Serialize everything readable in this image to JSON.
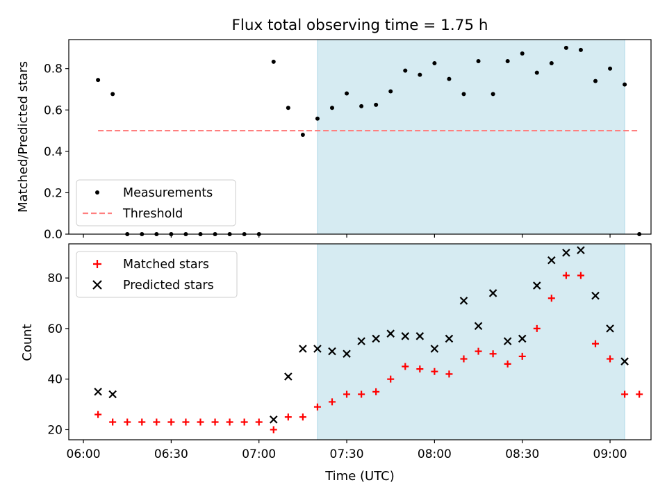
{
  "figure": {
    "title": "Flux total observing time = 1.75 h",
    "xlabel": "Time (UTC)",
    "x_ticks": [
      "06:00",
      "06:30",
      "07:00",
      "07:30",
      "08:00",
      "08:30",
      "09:00"
    ]
  },
  "chart_data": [
    {
      "type": "scatter",
      "panel": "top",
      "ylabel": "Matched/Predicted stars",
      "ylim": [
        0,
        0.94
      ],
      "y_ticks": [
        "0.0",
        "0.2",
        "0.4",
        "0.6",
        "0.8"
      ],
      "x_unit": "minutes after 06:00 UTC",
      "xlim": [
        -5,
        194
      ],
      "shaded_span": [
        80,
        185
      ],
      "series": [
        {
          "name": "Measurements",
          "marker": "dot",
          "color": "#000000",
          "x": [
            5,
            10,
            15,
            20,
            25,
            30,
            35,
            40,
            45,
            50,
            55,
            60,
            65,
            70,
            75,
            80,
            85,
            90,
            95,
            100,
            105,
            110,
            115,
            120,
            125,
            130,
            135,
            140,
            145,
            150,
            155,
            160,
            165,
            170,
            175,
            180,
            185,
            190
          ],
          "y": [
            0.745,
            0.677,
            0.0,
            0.0,
            0.0,
            0.0,
            0.0,
            0.0,
            0.0,
            0.0,
            0.0,
            0.0,
            0.833,
            0.61,
            0.48,
            0.558,
            0.61,
            0.68,
            0.618,
            0.625,
            0.69,
            0.79,
            0.77,
            0.826,
            0.75,
            0.677,
            0.836,
            0.677,
            0.836,
            0.873,
            0.78,
            0.826,
            0.9,
            0.89,
            0.74,
            0.8,
            0.723,
            0.0
          ]
        },
        {
          "name": "Threshold",
          "style": "dashed",
          "color": "#ff7f7f",
          "x": [
            5,
            190
          ],
          "y": [
            0.5,
            0.5
          ]
        }
      ],
      "legend": "lower-left"
    },
    {
      "type": "scatter",
      "panel": "bottom",
      "ylabel": "Count",
      "ylim": [
        16,
        93.5
      ],
      "y_ticks": [
        "20",
        "40",
        "60",
        "80"
      ],
      "x_unit": "minutes after 06:00 UTC",
      "xlim": [
        -5,
        194
      ],
      "shaded_span": [
        80,
        185
      ],
      "series": [
        {
          "name": "Matched stars",
          "marker": "plus",
          "color": "#ff0000",
          "x": [
            5,
            10,
            15,
            20,
            25,
            30,
            35,
            40,
            45,
            50,
            55,
            60,
            65,
            70,
            75,
            80,
            85,
            90,
            95,
            100,
            105,
            110,
            115,
            120,
            125,
            130,
            135,
            140,
            145,
            150,
            155,
            160,
            165,
            170,
            175,
            180,
            185,
            190
          ],
          "y": [
            26,
            23,
            23,
            23,
            23,
            23,
            23,
            23,
            23,
            23,
            23,
            23,
            20,
            25,
            25,
            29,
            31,
            34,
            34,
            35,
            40,
            45,
            44,
            43,
            42,
            48,
            51,
            50,
            46,
            49,
            60,
            72,
            81,
            81,
            54,
            48,
            34,
            34
          ]
        },
        {
          "name": "Predicted stars",
          "marker": "x",
          "color": "#000000",
          "x": [
            5,
            10,
            65,
            70,
            75,
            80,
            85,
            90,
            95,
            100,
            105,
            110,
            115,
            120,
            125,
            130,
            135,
            140,
            145,
            150,
            155,
            160,
            165,
            170,
            175,
            180,
            185
          ],
          "y": [
            35,
            34,
            24,
            41,
            52,
            52,
            51,
            50,
            55,
            56,
            58,
            57,
            57,
            52,
            56,
            71,
            61,
            74,
            55,
            56,
            77,
            87,
            90,
            91,
            73,
            60,
            47
          ]
        }
      ],
      "legend": "upper-left"
    }
  ],
  "colors": {
    "shade": "#add8e6",
    "threshold": "#ff7f7f",
    "matched": "#ff0000",
    "predicted": "#000000"
  }
}
